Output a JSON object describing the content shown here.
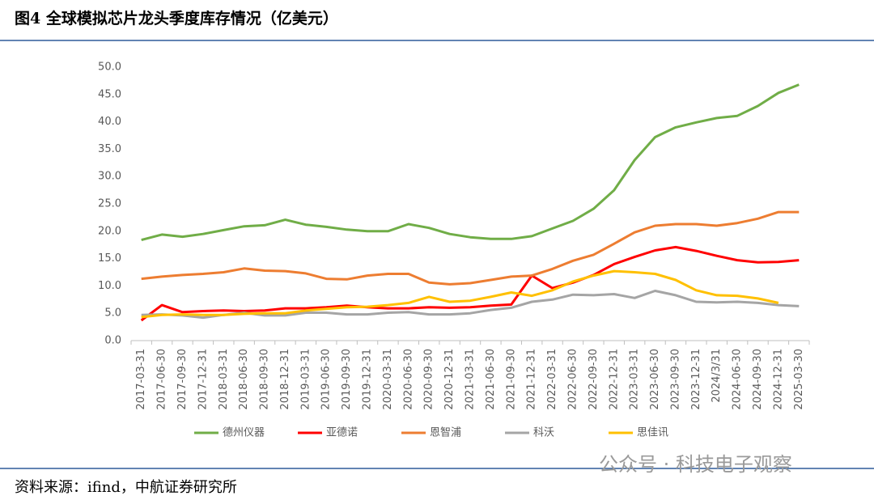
{
  "chart_data": {
    "type": "line",
    "title": "图4  全球模拟芯片龙头季度库存情况（亿美元）",
    "source": "资料来源：ifind，中航证券研究所",
    "watermark": "公众号 · 科技电子观察",
    "categories": [
      "2017-03-31",
      "2017-06-30",
      "2017-09-30",
      "2017-12-31",
      "2018-03-31",
      "2018-06-30",
      "2018-09-30",
      "2018-12-31",
      "2019-03-31",
      "2019-06-30",
      "2019-09-30",
      "2019-12-31",
      "2020-03-31",
      "2020-06-30",
      "2020-09-30",
      "2020-12-31",
      "2021-03-31",
      "2021-06-30",
      "2021-09-30",
      "2021-12-31",
      "2022-03-31",
      "2022-06-30",
      "2022-09-30",
      "2022-12-31",
      "2023-03-31",
      "2023-06-30",
      "2023-09-30",
      "2023-12-31",
      "2024/3/31",
      "2024-06-30",
      "2024-09-30",
      "2024-12-31",
      "2025-03-30"
    ],
    "series": [
      {
        "name": "德州仪器",
        "color": "#70ad47",
        "values": [
          18.4,
          19.4,
          19.0,
          19.5,
          20.2,
          20.9,
          21.1,
          22.1,
          21.2,
          20.8,
          20.3,
          20.0,
          20.0,
          21.3,
          20.6,
          19.5,
          18.9,
          18.6,
          18.6,
          19.1,
          20.5,
          21.9,
          24.1,
          27.5,
          33.0,
          37.2,
          39.0,
          39.9,
          40.7,
          41.1,
          42.9,
          45.3,
          46.8
        ]
      },
      {
        "name": "亚德诺",
        "color": "#ff0000",
        "values": [
          3.7,
          6.5,
          5.2,
          5.4,
          5.5,
          5.4,
          5.5,
          5.9,
          5.9,
          6.1,
          6.4,
          6.1,
          5.9,
          5.9,
          6.1,
          6.0,
          6.1,
          6.4,
          6.6,
          11.9,
          9.6,
          10.6,
          12.0,
          14.0,
          15.3,
          16.5,
          17.1,
          16.4,
          15.5,
          14.7,
          14.3,
          14.4,
          14.7
        ]
      },
      {
        "name": "恩智浦",
        "color": "#ed7d31",
        "values": [
          11.3,
          11.7,
          12.0,
          12.2,
          12.5,
          13.2,
          12.8,
          12.7,
          12.3,
          11.3,
          11.2,
          11.9,
          12.2,
          12.2,
          10.6,
          10.3,
          10.5,
          11.1,
          11.7,
          11.9,
          13.1,
          14.6,
          15.7,
          17.7,
          19.8,
          21.0,
          21.3,
          21.3,
          21.0,
          21.5,
          22.3,
          23.5,
          23.5
        ]
      },
      {
        "name": "科沃",
        "color": "#a5a5a5",
        "values": [
          4.7,
          4.8,
          4.6,
          4.2,
          4.7,
          5.1,
          4.6,
          4.6,
          5.1,
          5.1,
          4.8,
          4.8,
          5.1,
          5.2,
          4.8,
          4.8,
          5.0,
          5.6,
          6.0,
          7.1,
          7.5,
          8.4,
          8.3,
          8.5,
          7.8,
          9.1,
          8.3,
          7.1,
          7.0,
          7.1,
          6.9,
          6.5,
          6.3
        ]
      },
      {
        "name": "思佳讯",
        "color": "#ffc000",
        "values": [
          4.3,
          4.7,
          4.8,
          4.7,
          4.7,
          4.9,
          5.0,
          5.0,
          5.5,
          5.8,
          6.1,
          6.2,
          6.5,
          6.9,
          8.0,
          7.1,
          7.3,
          8.0,
          8.8,
          8.2,
          9.2,
          10.8,
          11.9,
          12.7,
          12.5,
          12.2,
          11.1,
          9.2,
          8.3,
          8.2,
          7.7,
          6.9,
          null
        ]
      }
    ],
    "ylim": [
      0,
      50
    ],
    "yticks": [
      {
        "value": 0,
        "label": "0.0"
      },
      {
        "value": 5,
        "label": "5.0"
      },
      {
        "value": 10,
        "label": "10.0"
      },
      {
        "value": 15,
        "label": "15.0"
      },
      {
        "value": 20,
        "label": "20.0"
      },
      {
        "value": 25,
        "label": "25.0"
      },
      {
        "value": 30,
        "label": "30.0"
      },
      {
        "value": 35,
        "label": "35.0"
      },
      {
        "value": 40,
        "label": "40.0"
      },
      {
        "value": 45,
        "label": "45.0"
      },
      {
        "value": 50,
        "label": "50.0"
      }
    ],
    "grid": false,
    "legend": "bottom"
  }
}
